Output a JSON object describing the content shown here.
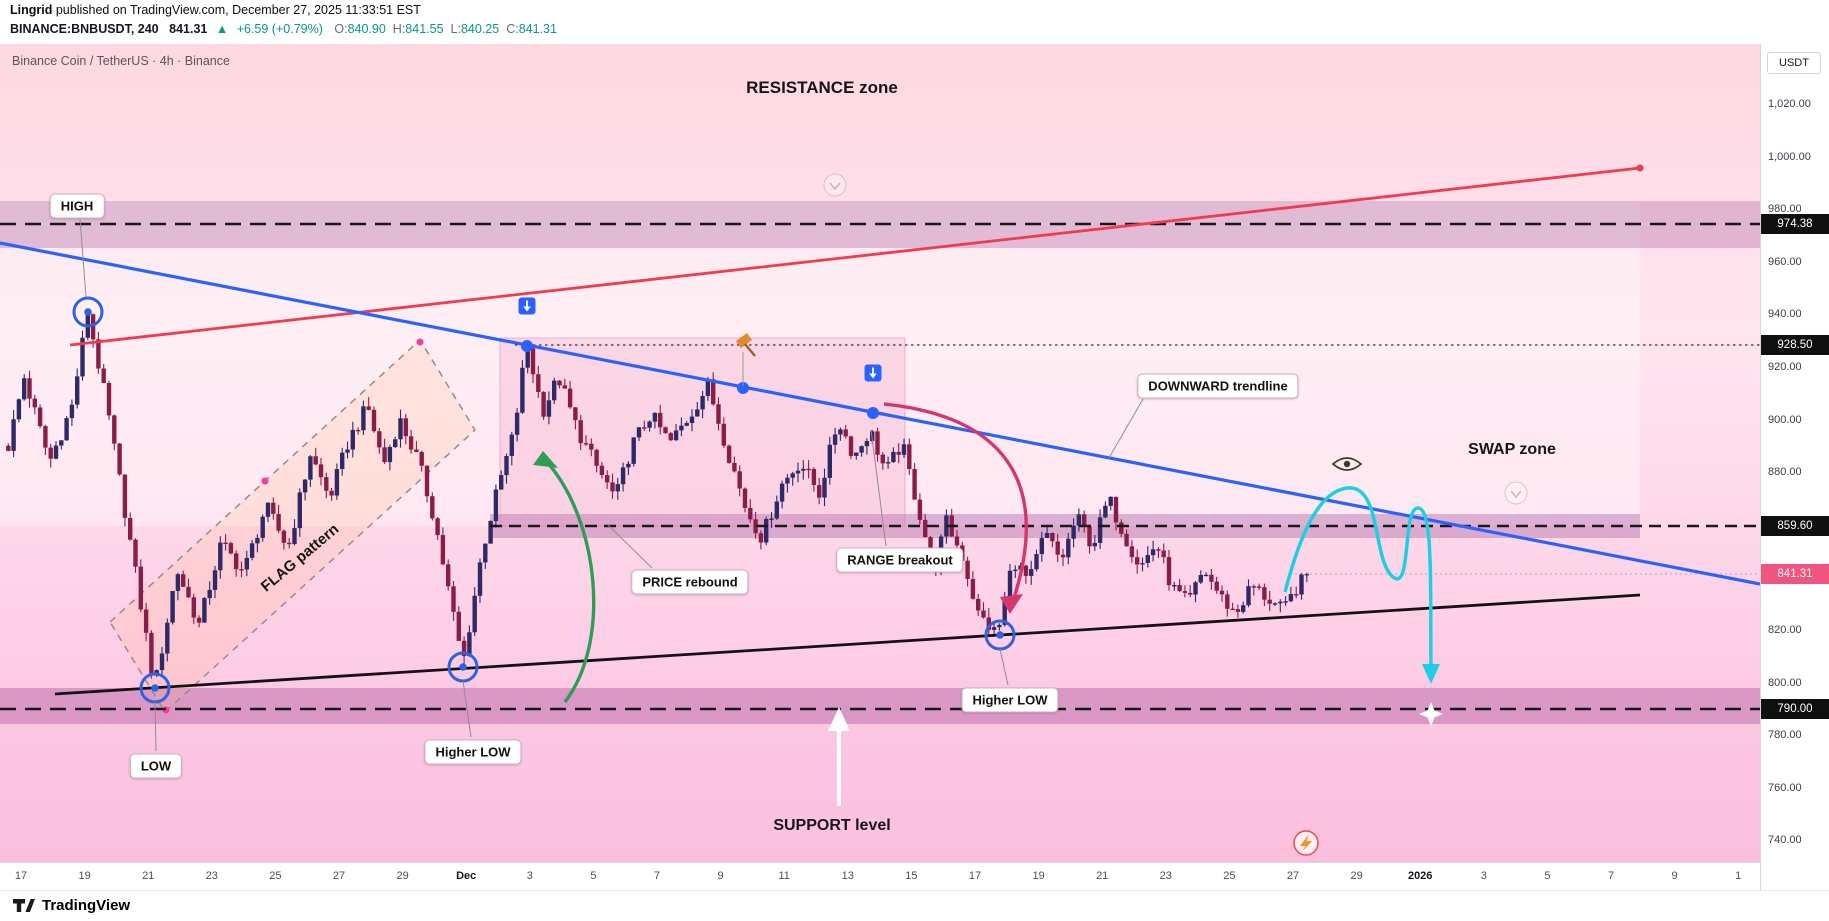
{
  "header": {
    "author": "Lingrid",
    "published": "published on TradingView.com, December 27, 2025 11:33:51 EST",
    "symbol": "BINANCE:BNBUSDT, 240",
    "last_price": "841.31",
    "change_arrow": "▲",
    "change": "+6.59 (+0.79%)",
    "ohlc": [
      {
        "k": "O",
        "v": "840.90"
      },
      {
        "k": "H",
        "v": "841.55"
      },
      {
        "k": "L",
        "v": "840.25"
      },
      {
        "k": "C",
        "v": "841.31"
      }
    ]
  },
  "watermark": "Binance Coin / TetherUS · 4h · Binance",
  "annotations": {
    "resistance_zone": "RESISTANCE zone",
    "swap_zone": "SWAP zone",
    "support_level": "SUPPORT level",
    "flag_pattern": "FLAG pattern",
    "high": "HIGH",
    "low": "LOW",
    "higher_low_1": "Higher LOW",
    "higher_low_2": "Higher LOW",
    "price_rebound": "PRICE rebound",
    "range_breakout": "RANGE breakout",
    "downward_trendline": "DOWNWARD trendline"
  },
  "price_scale": {
    "unit": "USDT",
    "ticks": [
      "1,020.00",
      "1,000.00",
      "980.00",
      "960.00",
      "940.00",
      "920.00",
      "900.00",
      "880.00",
      "860.00",
      "840.00",
      "820.00",
      "800.00",
      "780.00",
      "760.00",
      "740.00"
    ],
    "level_labels": [
      {
        "text": "974.38",
        "price": 974.38,
        "style": "black"
      },
      {
        "text": "928.50",
        "price": 928.5,
        "style": "black"
      },
      {
        "text": "859.60",
        "price": 859.6,
        "style": "black"
      },
      {
        "text": "841.31",
        "price": 841.31,
        "style": "pink"
      },
      {
        "text": "790.00",
        "price": 790,
        "style": "black"
      }
    ]
  },
  "time_axis": {
    "labels": [
      "17",
      "19",
      "21",
      "23",
      "25",
      "27",
      "29",
      "Dec",
      "3",
      "5",
      "7",
      "9",
      "11",
      "13",
      "15",
      "17",
      "19",
      "21",
      "23",
      "25",
      "27",
      "29",
      "2026",
      "3",
      "5",
      "7",
      "9",
      "1"
    ],
    "bold": [
      "Dec",
      "2026"
    ]
  },
  "footer": {
    "brand": "TradingView"
  },
  "colors": {
    "accent_blue": "#2962ff",
    "trend_red": "#f23b4e",
    "trend_black": "#131313",
    "cyan": "#1ecfe3",
    "magenta": "#d6366f",
    "green_arrow": "#2f9e55",
    "candle_up": "#2d2a67",
    "candle_down": "#8a1d48",
    "zone_band": "#c489b8",
    "price_label_black": "#101010",
    "price_label_pink": "#f0557f",
    "up_green": "#089981"
  },
  "chart_data": {
    "type": "candlestick",
    "symbol": "BINANCE:BNBUSDT",
    "timeframe": "4h",
    "x_axis": {
      "start": "Nov 17",
      "end": "Jan 11",
      "tick_interval_days": 2
    },
    "y_range": [
      740,
      1020
    ],
    "key_levels": {
      "resistance": 974.38,
      "range_top": 928.5,
      "swap_zone": 859.6,
      "last_price": 841.31,
      "support": 790.0
    },
    "zones": [
      {
        "name": "resistance-zone",
        "price_range": [
          965,
          983
        ]
      },
      {
        "name": "support-zone",
        "price_range": [
          784,
          798
        ]
      },
      {
        "name": "swap-zone",
        "price_range": [
          855,
          864
        ],
        "day_range": [
          14.7,
          50.9
        ]
      },
      {
        "name": "range-box",
        "price_range": [
          859.6,
          931
        ],
        "day_range": [
          15.1,
          27.8
        ]
      }
    ],
    "trendlines": [
      {
        "name": "downward-trendline",
        "color": "#2962ff",
        "from": [
          -0.7,
          967
        ],
        "to": [
          54.7,
          837
        ]
      },
      {
        "name": "rising-resistance-line",
        "color": "#f23b4e",
        "from": [
          1.5,
          928
        ],
        "to": [
          50.9,
          996
        ]
      },
      {
        "name": "rising-support-line",
        "color": "#131313",
        "from": [
          1.1,
          796
        ],
        "to": [
          50.9,
          833
        ]
      }
    ],
    "markers": [
      {
        "name": "HIGH",
        "day": 2.1,
        "price": 941
      },
      {
        "name": "LOW",
        "day": 4.2,
        "price": 798
      },
      {
        "name": "Higher LOW",
        "day": 13.9,
        "price": 806
      },
      {
        "name": "Higher LOW",
        "day": 30.8,
        "price": 818
      }
    ],
    "projection": {
      "color": "cyan",
      "waypoints": [
        [
          39.7,
          834
        ],
        [
          41.7,
          874
        ],
        [
          43.1,
          839
        ],
        [
          43.9,
          868
        ],
        [
          44.3,
          797
        ]
      ]
    },
    "price_path": [
      [
        -0.4,
        890
      ],
      [
        0.1,
        916
      ],
      [
        0.9,
        884
      ],
      [
        1.6,
        905
      ],
      [
        2.1,
        941
      ],
      [
        2.7,
        905
      ],
      [
        3.4,
        856
      ],
      [
        4.2,
        798
      ],
      [
        4.9,
        843
      ],
      [
        5.6,
        822
      ],
      [
        6.3,
        853
      ],
      [
        7.0,
        842
      ],
      [
        7.7,
        867
      ],
      [
        8.4,
        851
      ],
      [
        9.1,
        887
      ],
      [
        9.7,
        870
      ],
      [
        10.3,
        892
      ],
      [
        10.9,
        905
      ],
      [
        11.4,
        883
      ],
      [
        11.9,
        900
      ],
      [
        12.5,
        884
      ],
      [
        13.0,
        862
      ],
      [
        13.9,
        807
      ],
      [
        14.5,
        850
      ],
      [
        15.0,
        874
      ],
      [
        15.5,
        895
      ],
      [
        15.9,
        929
      ],
      [
        16.4,
        903
      ],
      [
        16.9,
        916
      ],
      [
        17.5,
        896
      ],
      [
        18.1,
        882
      ],
      [
        18.7,
        870
      ],
      [
        19.2,
        890
      ],
      [
        19.8,
        902
      ],
      [
        20.4,
        891
      ],
      [
        21.0,
        901
      ],
      [
        21.6,
        913
      ],
      [
        22.2,
        889
      ],
      [
        22.8,
        866
      ],
      [
        23.3,
        855
      ],
      [
        23.9,
        875
      ],
      [
        24.5,
        884
      ],
      [
        25.1,
        872
      ],
      [
        25.7,
        900
      ],
      [
        26.2,
        886
      ],
      [
        26.7,
        896
      ],
      [
        27.2,
        880
      ],
      [
        27.7,
        891
      ],
      [
        28.2,
        867
      ],
      [
        28.7,
        843
      ],
      [
        29.1,
        861
      ],
      [
        29.6,
        848
      ],
      [
        30.1,
        826
      ],
      [
        30.7,
        818
      ],
      [
        31.2,
        847
      ],
      [
        31.7,
        838
      ],
      [
        32.2,
        857
      ],
      [
        32.7,
        846
      ],
      [
        33.2,
        863
      ],
      [
        33.7,
        852
      ],
      [
        34.2,
        870
      ],
      [
        34.7,
        856
      ],
      [
        35.2,
        844
      ],
      [
        35.7,
        853
      ],
      [
        36.2,
        836
      ],
      [
        36.7,
        830
      ],
      [
        37.2,
        843
      ],
      [
        37.7,
        833
      ],
      [
        38.2,
        826
      ],
      [
        38.7,
        837
      ],
      [
        39.2,
        832
      ],
      [
        39.7,
        827
      ],
      [
        40.1,
        836
      ],
      [
        40.5,
        841.31
      ]
    ]
  }
}
